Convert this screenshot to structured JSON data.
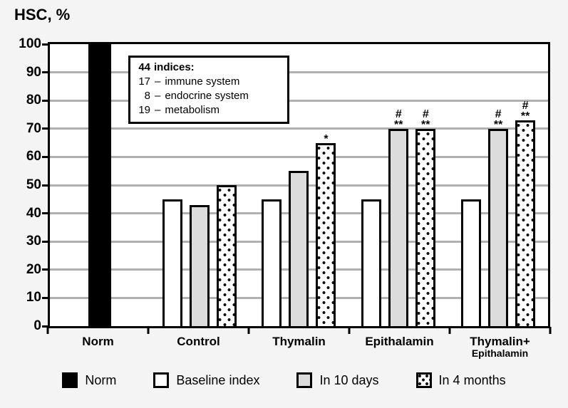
{
  "title": "HSC, %",
  "colors": {
    "background": "#f4f4f5",
    "plot_background": "#ffffff",
    "grid": "#b0b0b0",
    "axis": "#000000",
    "bar_black": "#000000",
    "bar_white": "#ffffff",
    "bar_gray": "#dcdcdc",
    "dot_pattern": "#111111"
  },
  "info_box": {
    "title_num": "44",
    "title_text": "indices:",
    "items": [
      {
        "num": "17",
        "sep": "–",
        "label": "immune system"
      },
      {
        "num": "8",
        "sep": "–",
        "label": "endocrine system"
      },
      {
        "num": "19",
        "sep": "–",
        "label": "metabolism"
      }
    ]
  },
  "chart_data": {
    "type": "bar",
    "title": "HSC, %",
    "ylabel": "HSC, %",
    "xlabel": "",
    "ylim": [
      0,
      100
    ],
    "ytick_step": 10,
    "grid": true,
    "legend_position": "bottom",
    "categories": [
      "Norm",
      "Control",
      "Thymalin",
      "Epithalamin",
      "Thymalin+\nEpithalamin"
    ],
    "series": [
      {
        "name": "Norm",
        "pattern": "black",
        "values": [
          100,
          null,
          null,
          null,
          null
        ]
      },
      {
        "name": "Baseline index",
        "pattern": "white",
        "values": [
          null,
          45,
          45,
          45,
          45
        ]
      },
      {
        "name": "In 10 days",
        "pattern": "gray",
        "values": [
          null,
          43,
          55,
          70,
          70
        ]
      },
      {
        "name": "In 4 months",
        "pattern": "dotted",
        "values": [
          null,
          50,
          65,
          70,
          73
        ]
      }
    ],
    "annotations": [
      {
        "category_index": 2,
        "series_index": 3,
        "lines": [
          "*"
        ]
      },
      {
        "category_index": 3,
        "series_index": 2,
        "lines": [
          "#",
          "**"
        ]
      },
      {
        "category_index": 3,
        "series_index": 3,
        "lines": [
          "#",
          "**"
        ]
      },
      {
        "category_index": 4,
        "series_index": 2,
        "lines": [
          "#",
          "**"
        ]
      },
      {
        "category_index": 4,
        "series_index": 3,
        "lines": [
          "#",
          "**"
        ]
      }
    ]
  },
  "legend": [
    {
      "label": "Norm",
      "pattern": "black"
    },
    {
      "label": "Baseline index",
      "pattern": "white"
    },
    {
      "label": "In 10 days",
      "pattern": "gray"
    },
    {
      "label": "In 4 months",
      "pattern": "dotted"
    }
  ]
}
